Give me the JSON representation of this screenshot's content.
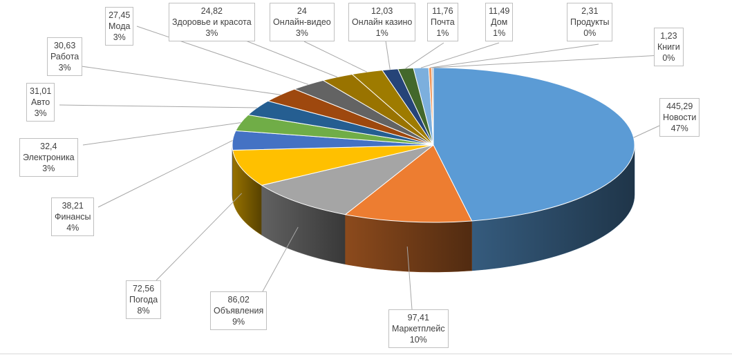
{
  "chart_data": {
    "type": "pie",
    "style": "3d-exploded-none",
    "title": "",
    "categories": [
      "Новости",
      "Маркетплейс",
      "Объявления",
      "Погода",
      "Финансы",
      "Электроника",
      "Авто",
      "Работа",
      "Мода",
      "Здоровье и красота",
      "Онлайн-видео",
      "Онлайн казино",
      "Почта",
      "Дом",
      "Продукты",
      "Книги"
    ],
    "values": [
      445.29,
      97.41,
      86.02,
      72.56,
      38.21,
      32.4,
      31.01,
      30.63,
      27.45,
      24.82,
      24,
      12.03,
      11.76,
      11.49,
      2.31,
      1.23
    ],
    "value_labels": [
      "445,29",
      "97,41",
      "86,02",
      "72,56",
      "38,21",
      "32,4",
      "31,01",
      "30,63",
      "27,45",
      "24,82",
      "24",
      "12,03",
      "11,76",
      "11,49",
      "2,31",
      "1,23"
    ],
    "percent_labels": [
      "47%",
      "10%",
      "9%",
      "8%",
      "4%",
      "3%",
      "3%",
      "3%",
      "3%",
      "3%",
      "3%",
      "1%",
      "1%",
      "1%",
      "0%",
      "0%"
    ],
    "colors": [
      "#5b9bd5",
      "#ed7d31",
      "#a5a5a5",
      "#ffc000",
      "#4472c4",
      "#70ad47",
      "#255e91",
      "#9e480e",
      "#636363",
      "#997300",
      "#9e7b00",
      "#264478",
      "#43682b",
      "#7cafdd",
      "#f1975a",
      "#b7b7b7"
    ],
    "legend": "none"
  }
}
